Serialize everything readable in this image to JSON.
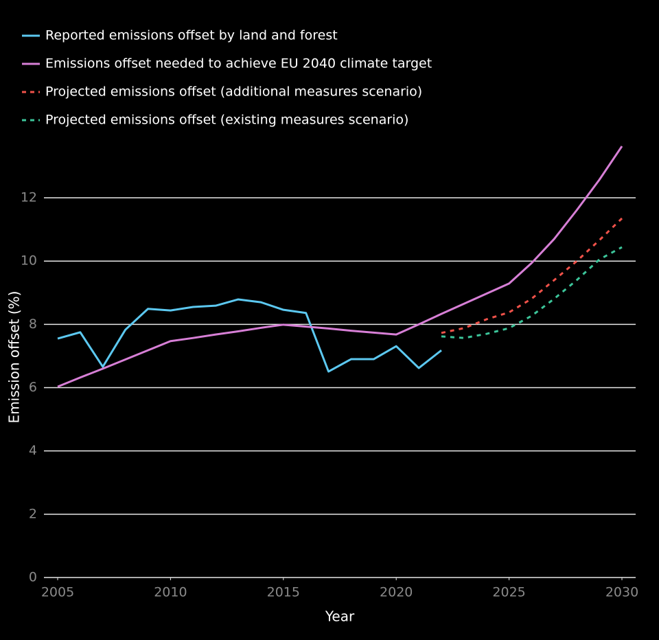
{
  "chart_data": {
    "type": "line",
    "x_label": "Year",
    "y_label": "Emission offset (%)",
    "x": [
      2005,
      2006,
      2007,
      2008,
      2009,
      2010,
      2011,
      2012,
      2013,
      2014,
      2015,
      2016,
      2017,
      2018,
      2019,
      2020,
      2021,
      2022,
      2023,
      2024,
      2025,
      2026,
      2027,
      2028,
      2029,
      2030
    ],
    "series": [
      {
        "name": "Reported emissions offset by land and forest",
        "color": "#5cc8f0",
        "dashed": false,
        "values": [
          7.55,
          7.75,
          6.66,
          7.83,
          8.49,
          8.44,
          8.55,
          8.59,
          8.79,
          8.7,
          8.46,
          8.36,
          6.51,
          6.9,
          6.9,
          7.31,
          6.62,
          7.18,
          null,
          null,
          null,
          null,
          null,
          null,
          null,
          null
        ]
      },
      {
        "name": "Emissions offset needed to achieve EU 2040 climate target",
        "color": "#d77fd6",
        "dashed": false,
        "values": [
          6.03,
          6.32,
          6.6,
          6.89,
          7.18,
          7.47,
          7.57,
          7.68,
          7.78,
          7.89,
          7.99,
          7.93,
          7.87,
          7.8,
          7.74,
          7.68,
          8.0,
          8.33,
          8.65,
          8.97,
          9.29,
          9.94,
          10.7,
          11.61,
          12.57,
          13.63
        ]
      },
      {
        "name": "Projected emissions offset (additional measures scenario)",
        "color": "#f0524a",
        "dashed": true,
        "values": [
          null,
          null,
          null,
          null,
          null,
          null,
          null,
          null,
          null,
          null,
          null,
          null,
          null,
          null,
          null,
          null,
          null,
          7.73,
          7.88,
          8.16,
          8.38,
          8.81,
          9.4,
          10.0,
          10.66,
          11.35
        ]
      },
      {
        "name": "Projected emissions offset (existing measures scenario)",
        "color": "#3cc59a",
        "dashed": true,
        "values": [
          null,
          null,
          null,
          null,
          null,
          null,
          null,
          null,
          null,
          null,
          null,
          null,
          null,
          null,
          null,
          null,
          null,
          7.62,
          7.57,
          7.7,
          7.88,
          8.27,
          8.81,
          9.4,
          10.05,
          10.44
        ]
      }
    ],
    "xlim": [
      2005,
      2030
    ],
    "xticks": [
      2005,
      2010,
      2015,
      2020,
      2025,
      2030
    ],
    "ylim": [
      0,
      14
    ],
    "yticks": [
      0,
      2,
      4,
      6,
      8,
      10,
      12
    ],
    "grid": true
  }
}
